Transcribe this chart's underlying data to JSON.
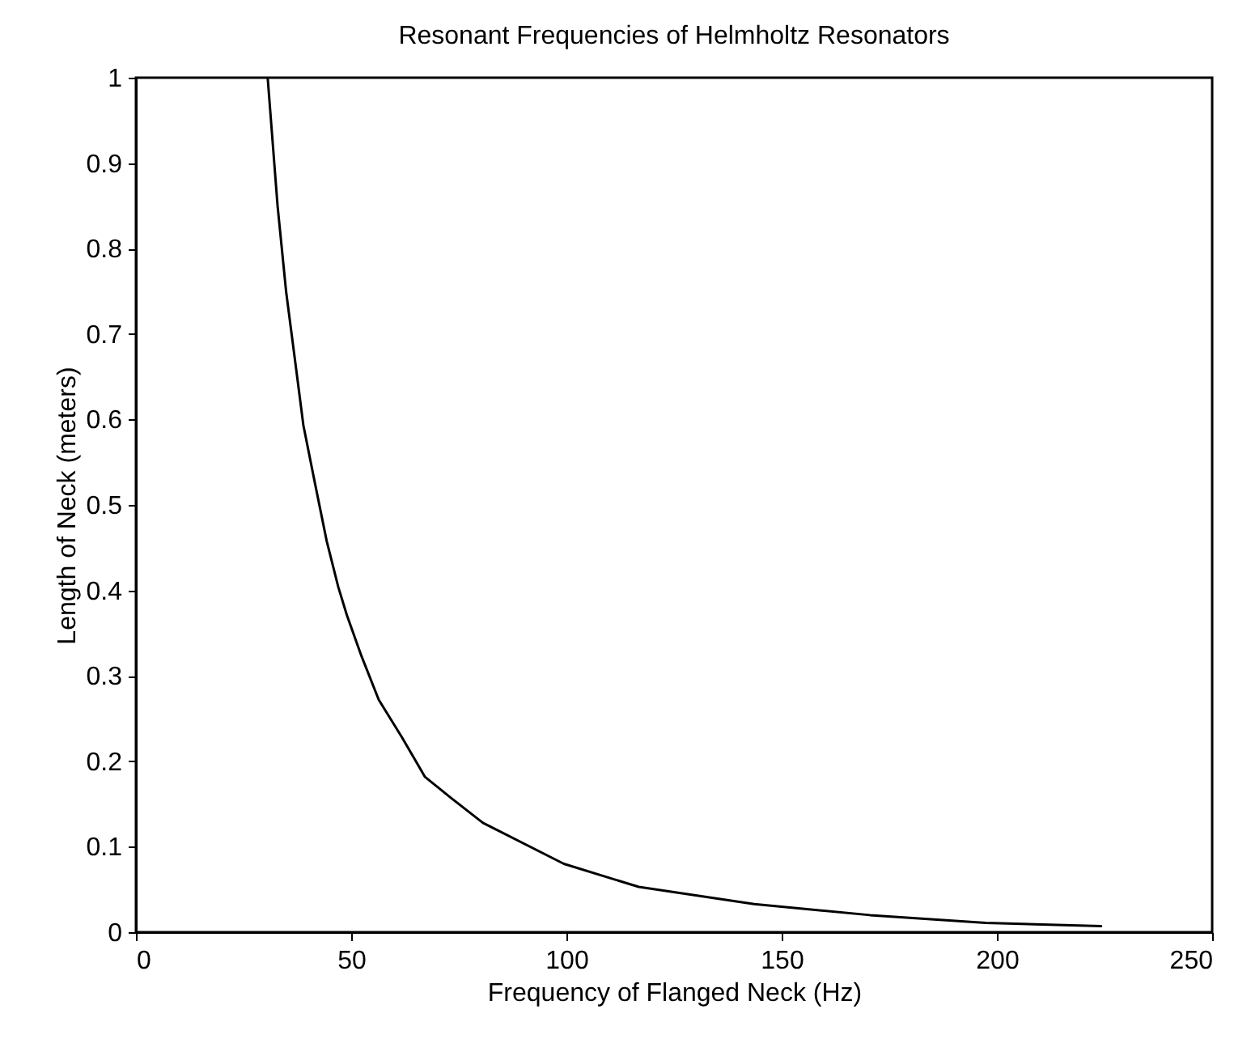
{
  "chart_data": {
    "type": "line",
    "title": "Resonant Frequencies of Helmholtz Resonators",
    "xlabel": "Frequency of Flanged Neck (Hz)",
    "ylabel": "Length of Neck (meters)",
    "x": [
      30.6,
      32.9,
      34.9,
      37.5,
      38.9,
      41.6,
      44.3,
      47.0,
      49.0,
      52.4,
      56.4,
      61.8,
      67.1,
      73.2,
      80.6,
      99.4,
      116.8,
      143.6,
      170.5,
      197.4,
      224.2
    ],
    "series": [
      {
        "color": "#000000",
        "values": [
          1.0,
          0.85,
          0.749,
          0.648,
          0.593,
          0.525,
          0.458,
          0.404,
          0.371,
          0.323,
          0.272,
          0.228,
          0.182,
          0.157,
          0.128,
          0.08,
          0.053,
          0.033,
          0.02,
          0.011,
          0.007
        ]
      }
    ],
    "xlim": [
      0,
      250
    ],
    "xticks": [
      0,
      50,
      100,
      150,
      200,
      250
    ],
    "ylim": [
      0,
      1
    ],
    "yticks": [
      0,
      0.1,
      0.2,
      0.3,
      0.4,
      0.5,
      0.6,
      0.7,
      0.8,
      0.9,
      1
    ],
    "grid": false,
    "marker": "none",
    "line_style": "solid"
  }
}
